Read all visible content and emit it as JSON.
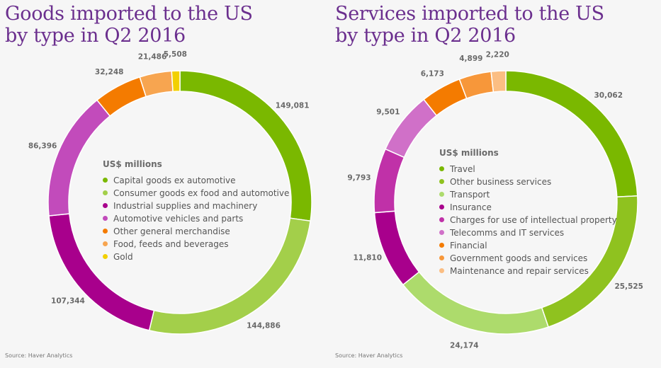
{
  "source": "Source: Haver Analytics",
  "chart_data": [
    {
      "type": "pie",
      "title_line1": "Goods imported to the US",
      "title_line2": "by type in Q2 2016",
      "legend_title": "US$ millions",
      "categories": [
        "Capital goods ex automotive",
        "Consumer goods ex food and automotive",
        "Industrial supplies and machinery",
        "Automotive vehicles and parts",
        "Other general merchandise",
        "Food, feeds and beverages",
        "Gold"
      ],
      "values": [
        149081,
        144886,
        107344,
        86396,
        32248,
        21486,
        5508
      ],
      "value_labels": [
        "149,081",
        "144,886",
        "107,344",
        "86,396",
        "32,248",
        "21,486",
        "5,508"
      ],
      "colors": [
        "#7ab800",
        "#a3cf4a",
        "#a8008c",
        "#c24bbb",
        "#f47b00",
        "#f7a550",
        "#f2d000"
      ]
    },
    {
      "type": "pie",
      "title_line1": "Services imported to the US",
      "title_line2": "by type in Q2 2016",
      "legend_title": "US$ millions",
      "categories": [
        "Travel",
        "Other business services",
        "Transport",
        "Insurance",
        "Charges for use of intellectual property",
        "Telecomms and IT services",
        "Financial",
        "Government goods and services",
        "Maintenance and repair services"
      ],
      "values": [
        30062,
        25525,
        24174,
        11810,
        9793,
        9501,
        6173,
        4899,
        2220
      ],
      "value_labels": [
        "30,062",
        "25,525",
        "24,174",
        "11,810",
        "9,793",
        "9,501",
        "6,173",
        "4,899",
        "2,220"
      ],
      "colors": [
        "#7ab800",
        "#8fc21f",
        "#addb6c",
        "#a8008c",
        "#c031a8",
        "#d070c8",
        "#f47b00",
        "#f7973a",
        "#fbbe83"
      ]
    }
  ]
}
